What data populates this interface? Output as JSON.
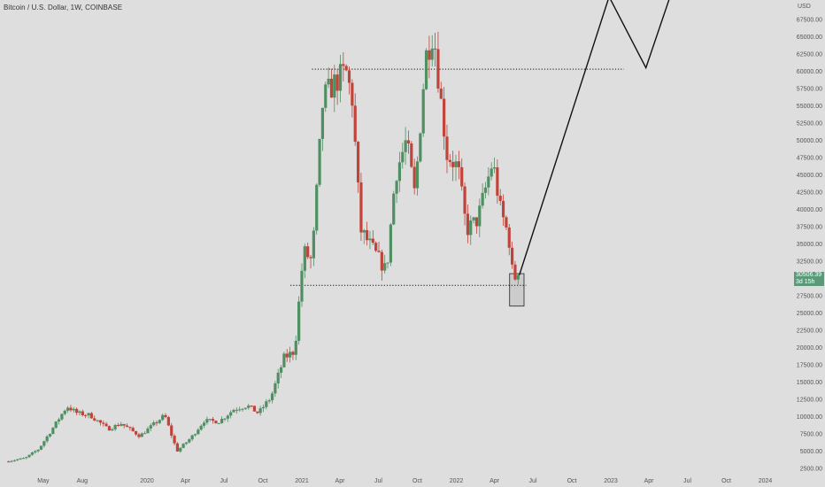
{
  "header": {
    "symbol": "Bitcoin / U.S. Dollar, 1W, COINBASE",
    "currency": "USD"
  },
  "last_price": {
    "value": "30506.39",
    "countdown": "3d 15h"
  },
  "colors": {
    "background": "#dedede",
    "up": "#4f8f62",
    "down": "#c0443a",
    "projection": "#111111",
    "price_badge": "#5a9a78"
  },
  "chart_data": {
    "type": "candlestick",
    "title": "Bitcoin / U.S. Dollar, 1W, COINBASE",
    "y_unit": "USD",
    "scale": "linear",
    "ylim": [
      1500,
      71500
    ],
    "y_ticks": [
      "67500.00",
      "65000.00",
      "62500.00",
      "60000.00",
      "57500.00",
      "55000.00",
      "52500.00",
      "50000.00",
      "47500.00",
      "45000.00",
      "42500.00",
      "40000.00",
      "37500.00",
      "35000.00",
      "32500.00",
      "30000.00",
      "27500.00",
      "25000.00",
      "22500.00",
      "20000.00",
      "17500.00",
      "15000.00",
      "12500.00",
      "10000.00",
      "7500.00",
      "5000.00",
      "2500.00"
    ],
    "x_ticks": [
      {
        "label": "May",
        "date": "2019-05-01"
      },
      {
        "label": "Aug",
        "date": "2019-08-01"
      },
      {
        "label": "2020",
        "date": "2020-01-01"
      },
      {
        "label": "Apr",
        "date": "2020-04-01"
      },
      {
        "label": "Jul",
        "date": "2020-07-01"
      },
      {
        "label": "Oct",
        "date": "2020-10-01"
      },
      {
        "label": "2021",
        "date": "2021-01-01"
      },
      {
        "label": "Apr",
        "date": "2021-04-01"
      },
      {
        "label": "Jul",
        "date": "2021-07-01"
      },
      {
        "label": "Oct",
        "date": "2021-10-01"
      },
      {
        "label": "2022",
        "date": "2022-01-01"
      },
      {
        "label": "Apr",
        "date": "2022-04-01"
      },
      {
        "label": "Jul",
        "date": "2022-07-01"
      },
      {
        "label": "Oct",
        "date": "2022-10-01"
      },
      {
        "label": "2023",
        "date": "2023-01-01"
      },
      {
        "label": "Apr",
        "date": "2023-04-01"
      },
      {
        "label": "Jul",
        "date": "2023-07-01"
      },
      {
        "label": "Oct",
        "date": "2023-10-01"
      },
      {
        "label": "2024",
        "date": "2024-01-01"
      }
    ],
    "anchors": [
      {
        "date": "2019-02-01",
        "close": 3500
      },
      {
        "date": "2019-03-20",
        "close": 4000
      },
      {
        "date": "2019-04-20",
        "close": 5300
      },
      {
        "date": "2019-05-20",
        "close": 8000
      },
      {
        "date": "2019-06-26",
        "close": 11500
      },
      {
        "date": "2019-07-20",
        "close": 10500
      },
      {
        "date": "2019-08-20",
        "close": 10200
      },
      {
        "date": "2019-10-01",
        "close": 8200
      },
      {
        "date": "2019-11-01",
        "close": 9000
      },
      {
        "date": "2019-12-15",
        "close": 7200
      },
      {
        "date": "2020-02-12",
        "close": 10200
      },
      {
        "date": "2020-03-12",
        "close": 5000
      },
      {
        "date": "2020-04-15",
        "close": 7000
      },
      {
        "date": "2020-05-15",
        "close": 9400
      },
      {
        "date": "2020-06-20",
        "close": 9300
      },
      {
        "date": "2020-07-25",
        "close": 11100
      },
      {
        "date": "2020-08-25",
        "close": 11600
      },
      {
        "date": "2020-09-20",
        "close": 10500
      },
      {
        "date": "2020-10-20",
        "close": 12800
      },
      {
        "date": "2020-11-20",
        "close": 18500
      },
      {
        "date": "2020-12-15",
        "close": 19500
      },
      {
        "date": "2021-01-05",
        "close": 34000
      },
      {
        "date": "2021-01-25",
        "close": 32500
      },
      {
        "date": "2021-02-20",
        "close": 56000
      },
      {
        "date": "2021-03-15",
        "close": 58000
      },
      {
        "date": "2021-04-15",
        "close": 60000
      },
      {
        "date": "2021-04-30",
        "close": 56000
      },
      {
        "date": "2021-05-20",
        "close": 37000
      },
      {
        "date": "2021-06-20",
        "close": 34000
      },
      {
        "date": "2021-07-20",
        "close": 31000
      },
      {
        "date": "2021-08-10",
        "close": 45000
      },
      {
        "date": "2021-09-05",
        "close": 50000
      },
      {
        "date": "2021-09-25",
        "close": 42000
      },
      {
        "date": "2021-10-20",
        "close": 62000
      },
      {
        "date": "2021-11-08",
        "close": 66000
      },
      {
        "date": "2021-11-25",
        "close": 56000
      },
      {
        "date": "2021-12-10",
        "close": 48000
      },
      {
        "date": "2022-01-05",
        "close": 46000
      },
      {
        "date": "2022-01-25",
        "close": 37000
      },
      {
        "date": "2022-02-20",
        "close": 38500
      },
      {
        "date": "2022-03-28",
        "close": 47000
      },
      {
        "date": "2022-04-15",
        "close": 40000
      },
      {
        "date": "2022-05-05",
        "close": 36000
      },
      {
        "date": "2022-05-15",
        "close": 30000
      },
      {
        "date": "2022-05-30",
        "close": 30506.39
      }
    ],
    "levels": [
      {
        "label": "resistance",
        "price": 60300,
        "from": "2021-01-25",
        "to": "2023-02-01"
      },
      {
        "label": "support",
        "price": 29000,
        "from": "2020-12-05",
        "to": "2022-06-15"
      }
    ],
    "highlight_box": {
      "from": "2022-05-07",
      "to": "2022-06-10",
      "low": 26000,
      "high": 30700
    },
    "projection": [
      {
        "date": "2022-05-30",
        "price": 30506.39
      },
      {
        "date": "2022-12-28",
        "price": 70800
      },
      {
        "date": "2023-03-25",
        "price": 60500
      },
      {
        "date": "2023-05-25",
        "price": 71500
      }
    ]
  }
}
